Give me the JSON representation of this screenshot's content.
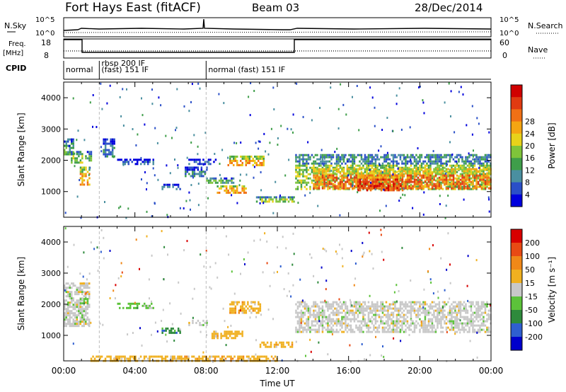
{
  "header": {
    "title": "Fort Hays East (fitACF)",
    "beam": "Beam 03",
    "date": "28/Dec/2014"
  },
  "top_panels": {
    "nsky_label": "N.Sky",
    "nsearch_label": "N.Search",
    "noise_ticks": [
      "10^5",
      "10^0"
    ],
    "freq_label_1": "Freq.",
    "freq_label_2": "[MHz]",
    "freq_ticks": [
      "18",
      "8"
    ],
    "nave_label": "Nave",
    "nave_ticks": [
      "60",
      "0"
    ],
    "cpid_label": "CPID",
    "cpid_segments": [
      {
        "start_h": 0.0,
        "end_h": 1.1,
        "label": "normal",
        "label2": ""
      },
      {
        "start_h": 2.0,
        "end_h": 8.0,
        "label": "rbsp 200 IF",
        "label2": "(fast) 151 IF"
      },
      {
        "start_h": 8.0,
        "end_h": 24.0,
        "label": "normal (fast) 151 IF",
        "label2": ""
      }
    ]
  },
  "chart_data": [
    {
      "type": "heatmap",
      "name": "power-panel",
      "ylabel": "Slant Range [km]",
      "yticks": [
        1000,
        2000,
        3000,
        4000
      ],
      "ylim": [
        180,
        4500
      ],
      "xlim": [
        0,
        24
      ],
      "colorbar": {
        "label": "Power [dB]",
        "ticks": [
          "4",
          "8",
          "12",
          "16",
          "20",
          "24",
          "28"
        ],
        "colors": [
          "#0000dd",
          "#2a4fc8",
          "#4a8fa0",
          "#3f9e4a",
          "#7fc43a",
          "#e8d21a",
          "#f5a512",
          "#f07015",
          "#e03a12",
          "#d00000"
        ]
      },
      "regions": [
        {
          "t0": 0.0,
          "t1": 0.5,
          "r0": 2200,
          "r1": 2700,
          "level": 3
        },
        {
          "t0": 0.4,
          "t1": 1.0,
          "r0": 1900,
          "r1": 2300,
          "level": 4
        },
        {
          "t0": 0.9,
          "t1": 1.4,
          "r0": 1250,
          "r1": 1800,
          "level": 6
        },
        {
          "t0": 1.2,
          "t1": 1.5,
          "r0": 2000,
          "r1": 2300,
          "level": 3
        },
        {
          "t0": 2.2,
          "t1": 2.8,
          "r0": 2100,
          "r1": 2700,
          "level": 2
        },
        {
          "t0": 3.0,
          "t1": 5.0,
          "r0": 1900,
          "r1": 2050,
          "level": 1
        },
        {
          "t0": 5.5,
          "t1": 6.5,
          "r0": 1050,
          "r1": 1250,
          "level": 2
        },
        {
          "t0": 6.8,
          "t1": 8.0,
          "r0": 1500,
          "r1": 1800,
          "level": 2
        },
        {
          "t0": 7.0,
          "t1": 8.5,
          "r0": 1900,
          "r1": 2050,
          "level": 1
        },
        {
          "t0": 8.0,
          "t1": 9.5,
          "r0": 1250,
          "r1": 1450,
          "level": 3
        },
        {
          "t0": 8.6,
          "t1": 10.2,
          "r0": 950,
          "r1": 1200,
          "level": 6
        },
        {
          "t0": 9.2,
          "t1": 11.2,
          "r0": 1850,
          "r1": 2150,
          "level": 6
        },
        {
          "t0": 10.8,
          "t1": 12.9,
          "r0": 650,
          "r1": 850,
          "level": 4
        },
        {
          "t0": 13.0,
          "t1": 24.0,
          "r0": 1100,
          "r1": 2200,
          "level": 4
        },
        {
          "t0": 14.0,
          "t1": 24.0,
          "r0": 1100,
          "r1": 1750,
          "level": 7
        },
        {
          "t0": 16.5,
          "t1": 19.0,
          "r0": 1050,
          "r1": 1550,
          "level": 8
        }
      ]
    },
    {
      "type": "heatmap",
      "name": "velocity-panel",
      "ylabel": "Slant Range [km]",
      "yticks": [
        1000,
        2000,
        3000,
        4000
      ],
      "ylim": [
        180,
        4500
      ],
      "xlim": [
        0,
        24
      ],
      "xlabel": "Time UT",
      "xticks": [
        "00:00",
        "04:00",
        "08:00",
        "12:00",
        "16:00",
        "20:00",
        "00:00"
      ],
      "xtick_hours": [
        0,
        4,
        8,
        12,
        16,
        20,
        24
      ],
      "colorbar": {
        "label": "Velocity [m s⁻¹]",
        "ticks": [
          "200",
          "100",
          "50",
          "15",
          "-15",
          "-50",
          "-100",
          "-200"
        ],
        "colors": [
          "#0000cc",
          "#2f5fd0",
          "#2e8a3c",
          "#5cc23a",
          "#c8c8c8",
          "#f0b020",
          "#f08818",
          "#e84a14",
          "#d80000"
        ]
      },
      "regions": [
        {
          "t0": 0.0,
          "t1": 1.4,
          "r0": 1300,
          "r1": 2700,
          "color": 4
        },
        {
          "t0": 0.9,
          "t1": 1.3,
          "r0": 2000,
          "r1": 2200,
          "color": 3
        },
        {
          "t0": 3.0,
          "t1": 5.0,
          "r0": 1900,
          "r1": 2050,
          "color": 3
        },
        {
          "t0": 5.5,
          "t1": 6.5,
          "r0": 1100,
          "r1": 1250,
          "color": 2
        },
        {
          "t0": 7.0,
          "t1": 8.0,
          "r0": 1300,
          "r1": 1500,
          "color": 4
        },
        {
          "t0": 8.3,
          "t1": 10.0,
          "r0": 900,
          "r1": 1150,
          "color": 5
        },
        {
          "t0": 9.3,
          "t1": 11.0,
          "r0": 1700,
          "r1": 2100,
          "color": 5
        },
        {
          "t0": 11.0,
          "t1": 12.8,
          "r0": 600,
          "r1": 800,
          "color": 5
        },
        {
          "t0": 13.0,
          "t1": 24.0,
          "r0": 1100,
          "r1": 2100,
          "color": 4
        },
        {
          "t0": 1.5,
          "t1": 12.0,
          "r0": 180,
          "r1": 350,
          "color": 5
        }
      ]
    }
  ]
}
